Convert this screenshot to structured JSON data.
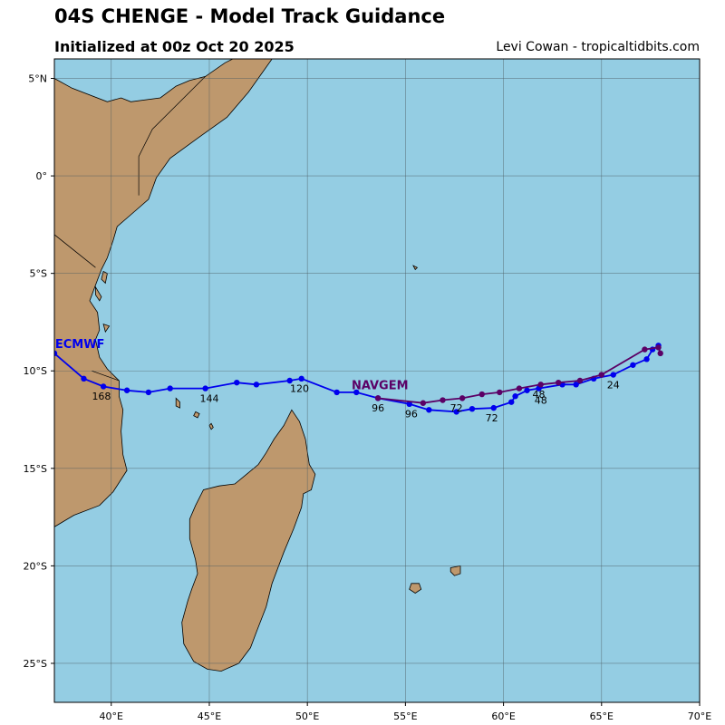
{
  "header": {
    "title": "04S CHENGE - Model Track Guidance",
    "initialized": "Initialized at 00z Oct 20 2025",
    "credit": "Levi Cowan - tropicaltidbits.com"
  },
  "map": {
    "extent": {
      "lon": [
        37.1,
        70.0
      ],
      "lat": [
        -27.0,
        6.0
      ]
    },
    "colors": {
      "ocean": "#94cde3",
      "land": "#be986d",
      "grid": "#4d5d63",
      "coast": "#000000"
    },
    "lon_ticks": [
      {
        "value": 40,
        "label": "40°E"
      },
      {
        "value": 45,
        "label": "45°E"
      },
      {
        "value": 50,
        "label": "50°E"
      },
      {
        "value": 55,
        "label": "55°E"
      },
      {
        "value": 60,
        "label": "60°E"
      },
      {
        "value": 65,
        "label": "65°E"
      },
      {
        "value": 70,
        "label": "70°E"
      }
    ],
    "lat_ticks": [
      {
        "value": 5,
        "label": "5°N"
      },
      {
        "value": 0,
        "label": "0°"
      },
      {
        "value": -5,
        "label": "5°S"
      },
      {
        "value": -10,
        "label": "10°S"
      },
      {
        "value": -15,
        "label": "15°S"
      },
      {
        "value": -20,
        "label": "20°S"
      },
      {
        "value": -25,
        "label": "25°S"
      }
    ],
    "land": {
      "africa": [
        [
          37.1,
          5.0
        ],
        [
          38,
          4.5
        ],
        [
          39.8,
          3.8
        ],
        [
          40.5,
          4.0
        ],
        [
          41,
          3.8
        ],
        [
          42.5,
          4.0
        ],
        [
          43.3,
          4.6
        ],
        [
          44,
          4.9
        ],
        [
          44.8,
          5.1
        ],
        [
          45.8,
          5.8
        ],
        [
          46.2,
          6.0
        ],
        [
          48.2,
          6.0
        ],
        [
          47,
          4.3
        ],
        [
          45.9,
          3.0
        ],
        [
          44.5,
          2.0
        ],
        [
          43,
          0.9
        ],
        [
          42.3,
          -0.1
        ],
        [
          41.9,
          -1.2
        ],
        [
          41.1,
          -1.9
        ],
        [
          40.3,
          -2.6
        ],
        [
          40.1,
          -3.3
        ],
        [
          39.8,
          -4.2
        ],
        [
          39.5,
          -4.8
        ],
        [
          39.2,
          -5.6
        ],
        [
          38.9,
          -6.4
        ],
        [
          39.3,
          -7.0
        ],
        [
          39.4,
          -7.9
        ],
        [
          39.2,
          -8.4
        ],
        [
          39.4,
          -9.3
        ],
        [
          39.8,
          -9.9
        ],
        [
          40.4,
          -10.5
        ],
        [
          40.4,
          -11.3
        ],
        [
          40.6,
          -12.0
        ],
        [
          40.5,
          -13.1
        ],
        [
          40.6,
          -14.3
        ],
        [
          40.8,
          -15.1
        ],
        [
          40.1,
          -16.2
        ],
        [
          39.4,
          -16.9
        ],
        [
          38.1,
          -17.4
        ],
        [
          37.1,
          -18.0
        ],
        [
          37.1,
          5.0
        ]
      ],
      "madagascar": [
        [
          49.2,
          -12.0
        ],
        [
          49.6,
          -12.6
        ],
        [
          49.9,
          -13.5
        ],
        [
          50.1,
          -14.8
        ],
        [
          50.4,
          -15.3
        ],
        [
          50.2,
          -16.1
        ],
        [
          49.8,
          -16.3
        ],
        [
          49.7,
          -17.0
        ],
        [
          49.3,
          -18.1
        ],
        [
          48.8,
          -19.3
        ],
        [
          48.2,
          -20.9
        ],
        [
          47.9,
          -22.1
        ],
        [
          47.4,
          -23.4
        ],
        [
          47.1,
          -24.2
        ],
        [
          46.5,
          -25.0
        ],
        [
          45.6,
          -25.4
        ],
        [
          44.9,
          -25.3
        ],
        [
          44.2,
          -24.9
        ],
        [
          43.7,
          -24.0
        ],
        [
          43.6,
          -22.9
        ],
        [
          43.9,
          -21.8
        ],
        [
          44.1,
          -21.2
        ],
        [
          44.4,
          -20.4
        ],
        [
          44.3,
          -19.7
        ],
        [
          44.0,
          -18.6
        ],
        [
          44.0,
          -17.6
        ],
        [
          44.3,
          -16.9
        ],
        [
          44.7,
          -16.1
        ],
        [
          45.5,
          -15.9
        ],
        [
          46.3,
          -15.8
        ],
        [
          46.9,
          -15.3
        ],
        [
          47.5,
          -14.8
        ],
        [
          47.9,
          -14.2
        ],
        [
          48.3,
          -13.5
        ],
        [
          48.8,
          -12.8
        ],
        [
          49.2,
          -12.0
        ]
      ],
      "islands": [
        [
          [
            57.3,
            -20.1
          ],
          [
            57.8,
            -20.0
          ],
          [
            57.8,
            -20.4
          ],
          [
            57.5,
            -20.5
          ],
          [
            57.3,
            -20.3
          ],
          [
            57.3,
            -20.1
          ]
        ],
        [
          [
            55.3,
            -20.9
          ],
          [
            55.7,
            -20.9
          ],
          [
            55.8,
            -21.2
          ],
          [
            55.5,
            -21.4
          ],
          [
            55.2,
            -21.2
          ],
          [
            55.3,
            -20.9
          ]
        ],
        [
          [
            43.3,
            -11.4
          ],
          [
            43.5,
            -11.6
          ],
          [
            43.5,
            -11.9
          ],
          [
            43.3,
            -11.8
          ],
          [
            43.3,
            -11.4
          ]
        ],
        [
          [
            44.3,
            -12.1
          ],
          [
            44.5,
            -12.2
          ],
          [
            44.4,
            -12.4
          ],
          [
            44.2,
            -12.3
          ],
          [
            44.3,
            -12.1
          ]
        ],
        [
          [
            45.1,
            -12.7
          ],
          [
            45.2,
            -12.9
          ],
          [
            45.1,
            -13.0
          ],
          [
            45.0,
            -12.8
          ],
          [
            45.1,
            -12.7
          ]
        ],
        [
          [
            39.6,
            -4.9
          ],
          [
            39.8,
            -5.0
          ],
          [
            39.7,
            -5.5
          ],
          [
            39.5,
            -5.3
          ],
          [
            39.6,
            -4.9
          ]
        ],
        [
          [
            39.2,
            -5.7
          ],
          [
            39.5,
            -6.2
          ],
          [
            39.4,
            -6.4
          ],
          [
            39.2,
            -6.1
          ],
          [
            39.2,
            -5.7
          ]
        ],
        [
          [
            39.6,
            -7.6
          ],
          [
            39.9,
            -7.7
          ],
          [
            39.7,
            -8.0
          ],
          [
            39.6,
            -7.6
          ]
        ],
        [
          [
            55.4,
            -4.6
          ],
          [
            55.6,
            -4.7
          ],
          [
            55.5,
            -4.8
          ],
          [
            55.4,
            -4.6
          ]
        ]
      ],
      "borders": [
        [
          [
            44.8,
            5.1
          ],
          [
            42.1,
            2.4
          ],
          [
            41.4,
            1.0
          ],
          [
            41.4,
            -1.0
          ]
        ],
        [
          [
            39.2,
            -4.7
          ],
          [
            34.6,
            -1.0
          ]
        ],
        [
          [
            40.4,
            -10.5
          ],
          [
            39.0,
            -10.0
          ]
        ]
      ]
    }
  },
  "chart_data": {
    "type": "scatter",
    "title": "04S CHENGE - Model Track Guidance",
    "xlabel": "",
    "ylabel": "",
    "xlim": [
      37.1,
      70.0
    ],
    "ylim": [
      -27.0,
      6.0
    ],
    "grid": true,
    "series": [
      {
        "name": "ECMWF",
        "color": "#0000ee",
        "label": {
          "lon": 38.4,
          "lat": -8.6
        },
        "points": [
          [
            67.9,
            -8.7
          ],
          [
            67.6,
            -8.9
          ],
          [
            67.3,
            -9.4
          ],
          [
            66.6,
            -9.7
          ],
          [
            65.6,
            -10.2
          ],
          [
            64.6,
            -10.4
          ],
          [
            63.7,
            -10.7
          ],
          [
            63.0,
            -10.7
          ],
          [
            61.8,
            -10.9
          ],
          [
            61.2,
            -11.0
          ],
          [
            60.6,
            -11.3
          ],
          [
            60.4,
            -11.6
          ],
          [
            59.5,
            -11.9
          ],
          [
            58.4,
            -11.95
          ],
          [
            57.6,
            -12.1
          ],
          [
            56.2,
            -12.0
          ],
          [
            55.2,
            -11.7
          ],
          [
            53.6,
            -11.4
          ],
          [
            52.5,
            -11.1
          ],
          [
            51.5,
            -11.1
          ],
          [
            49.7,
            -10.4
          ],
          [
            49.1,
            -10.5
          ],
          [
            47.4,
            -10.7
          ],
          [
            46.4,
            -10.6
          ],
          [
            44.8,
            -10.9
          ],
          [
            43.0,
            -10.9
          ],
          [
            41.9,
            -11.1
          ],
          [
            40.8,
            -11.0
          ],
          [
            39.6,
            -10.8
          ],
          [
            38.6,
            -10.4
          ],
          [
            37.1,
            -9.1
          ]
        ],
        "tau_labels": [
          {
            "lon": 65.6,
            "lat": -10.7,
            "text": "24"
          },
          {
            "lon": 61.9,
            "lat": -11.5,
            "text": "48"
          },
          {
            "lon": 59.4,
            "lat": -12.4,
            "text": "72"
          },
          {
            "lon": 55.3,
            "lat": -12.2,
            "text": "96"
          },
          {
            "lon": 49.6,
            "lat": -10.9,
            "text": "120"
          },
          {
            "lon": 45.0,
            "lat": -11.4,
            "text": "144"
          },
          {
            "lon": 39.5,
            "lat": -11.3,
            "text": "168"
          }
        ]
      },
      {
        "name": "NAVGEM",
        "color": "#5b0066",
        "label": {
          "lon": 53.7,
          "lat": -10.7
        },
        "points": [
          [
            68.0,
            -9.1
          ],
          [
            67.9,
            -8.8
          ],
          [
            67.2,
            -8.9
          ],
          [
            65.0,
            -10.2
          ],
          [
            63.9,
            -10.5
          ],
          [
            62.8,
            -10.6
          ],
          [
            61.9,
            -10.7
          ],
          [
            60.8,
            -10.9
          ],
          [
            59.8,
            -11.1
          ],
          [
            58.9,
            -11.2
          ],
          [
            57.9,
            -11.4
          ],
          [
            56.9,
            -11.5
          ],
          [
            55.9,
            -11.65
          ],
          [
            53.6,
            -11.4
          ]
        ],
        "tau_labels": [
          {
            "lon": 61.8,
            "lat": -11.2,
            "text": "48"
          },
          {
            "lon": 57.6,
            "lat": -11.9,
            "text": "72"
          },
          {
            "lon": 53.6,
            "lat": -11.9,
            "text": "96"
          }
        ]
      }
    ]
  }
}
